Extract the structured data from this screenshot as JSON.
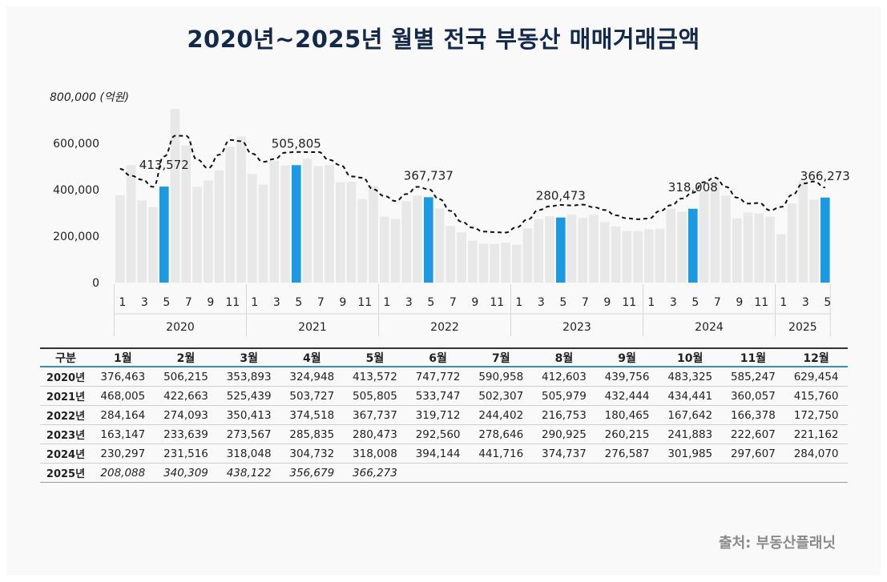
{
  "title": "2020년~2025년 월별 전국 부동산 매매거래금액",
  "source": "출처: 부동산플래닛",
  "chart_data": {
    "type": "bar",
    "title": "2020년~2025년 월별 전국 부동산 매매거래금액",
    "ylabel_top": "800,000 (억원)",
    "ylim": [
      0,
      800000
    ],
    "y_ticks": [
      "0",
      "200,000",
      "400,000",
      "600,000"
    ],
    "x_ticks": [
      "1",
      "3",
      "5",
      "7",
      "9",
      "11"
    ],
    "x_ticks_2025": [
      "1",
      "3",
      "5"
    ],
    "years": [
      "2020",
      "2021",
      "2022",
      "2023",
      "2024",
      "2025"
    ],
    "values": {
      "2020": [
        376463,
        506215,
        353893,
        324948,
        413572,
        747772,
        590958,
        412603,
        439756,
        483325,
        585247,
        629454
      ],
      "2021": [
        468005,
        422663,
        525439,
        503727,
        505805,
        533747,
        502307,
        505979,
        432444,
        434441,
        360057,
        415760
      ],
      "2022": [
        284164,
        274093,
        350413,
        374518,
        367737,
        319712,
        244402,
        216753,
        180465,
        167642,
        166378,
        172750
      ],
      "2023": [
        163147,
        233639,
        273567,
        285835,
        280473,
        292560,
        278646,
        290925,
        260215,
        241883,
        222607,
        221162
      ],
      "2024": [
        230297,
        231516,
        318048,
        304732,
        318008,
        394144,
        441716,
        374737,
        276587,
        301985,
        297607,
        284070
      ],
      "2025": [
        208088,
        340309,
        438122,
        356679,
        366273
      ]
    },
    "highlight_month": 5,
    "highlight_labels": {
      "2020": "413,572",
      "2021": "505,805",
      "2022": "367,737",
      "2023": "280,473",
      "2024": "318,008",
      "2025": "366,273"
    },
    "trend_line": "dashed",
    "colors": {
      "bar": "#e8e8e8",
      "highlight": "#1b9ae4",
      "trend": "#111111",
      "title": "#13294b"
    }
  },
  "table": {
    "headers": [
      "구분",
      "1월",
      "2월",
      "3월",
      "4월",
      "5월",
      "6월",
      "7월",
      "8월",
      "9월",
      "10월",
      "11월",
      "12월"
    ],
    "rows": [
      [
        "2020년",
        "376,463",
        "506,215",
        "353,893",
        "324,948",
        "413,572",
        "747,772",
        "590,958",
        "412,603",
        "439,756",
        "483,325",
        "585,247",
        "629,454"
      ],
      [
        "2021년",
        "468,005",
        "422,663",
        "525,439",
        "503,727",
        "505,805",
        "533,747",
        "502,307",
        "505,979",
        "432,444",
        "434,441",
        "360,057",
        "415,760"
      ],
      [
        "2022년",
        "284,164",
        "274,093",
        "350,413",
        "374,518",
        "367,737",
        "319,712",
        "244,402",
        "216,753",
        "180,465",
        "167,642",
        "166,378",
        "172,750"
      ],
      [
        "2023년",
        "163,147",
        "233,639",
        "273,567",
        "285,835",
        "280,473",
        "292,560",
        "278,646",
        "290,925",
        "260,215",
        "241,883",
        "222,607",
        "221,162"
      ],
      [
        "2024년",
        "230,297",
        "231,516",
        "318,048",
        "304,732",
        "318,008",
        "394,144",
        "441,716",
        "374,737",
        "276,587",
        "301,985",
        "297,607",
        "284,070"
      ],
      [
        "2025년",
        "208,088",
        "340,309",
        "438,122",
        "356,679",
        "366,273",
        "",
        "",
        "",
        "",
        "",
        "",
        ""
      ]
    ]
  }
}
